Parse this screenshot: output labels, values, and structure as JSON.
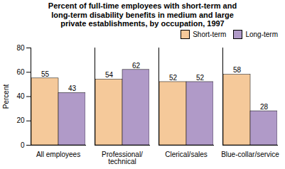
{
  "chart_data": {
    "type": "bar",
    "title": "Percent of full-time employees with short-term and\nlong-term disability benefits in medium and large\nprivate establishments, by occupation, 1997",
    "categories": [
      "All employees",
      "Professional/\ntechnical",
      "Clerical/sales",
      "Blue-collar/service"
    ],
    "series": [
      {
        "name": "Short-term",
        "color": "#F5C99A",
        "values": [
          55,
          54,
          52,
          58
        ]
      },
      {
        "name": "Long-term",
        "color": "#B09AC8",
        "values": [
          43,
          62,
          52,
          28
        ]
      }
    ],
    "ylabel": "Percent",
    "ylim": [
      0,
      80
    ],
    "yticks": [
      0,
      20,
      40,
      60,
      80
    ],
    "legend": "upper right",
    "data_labels": true
  }
}
